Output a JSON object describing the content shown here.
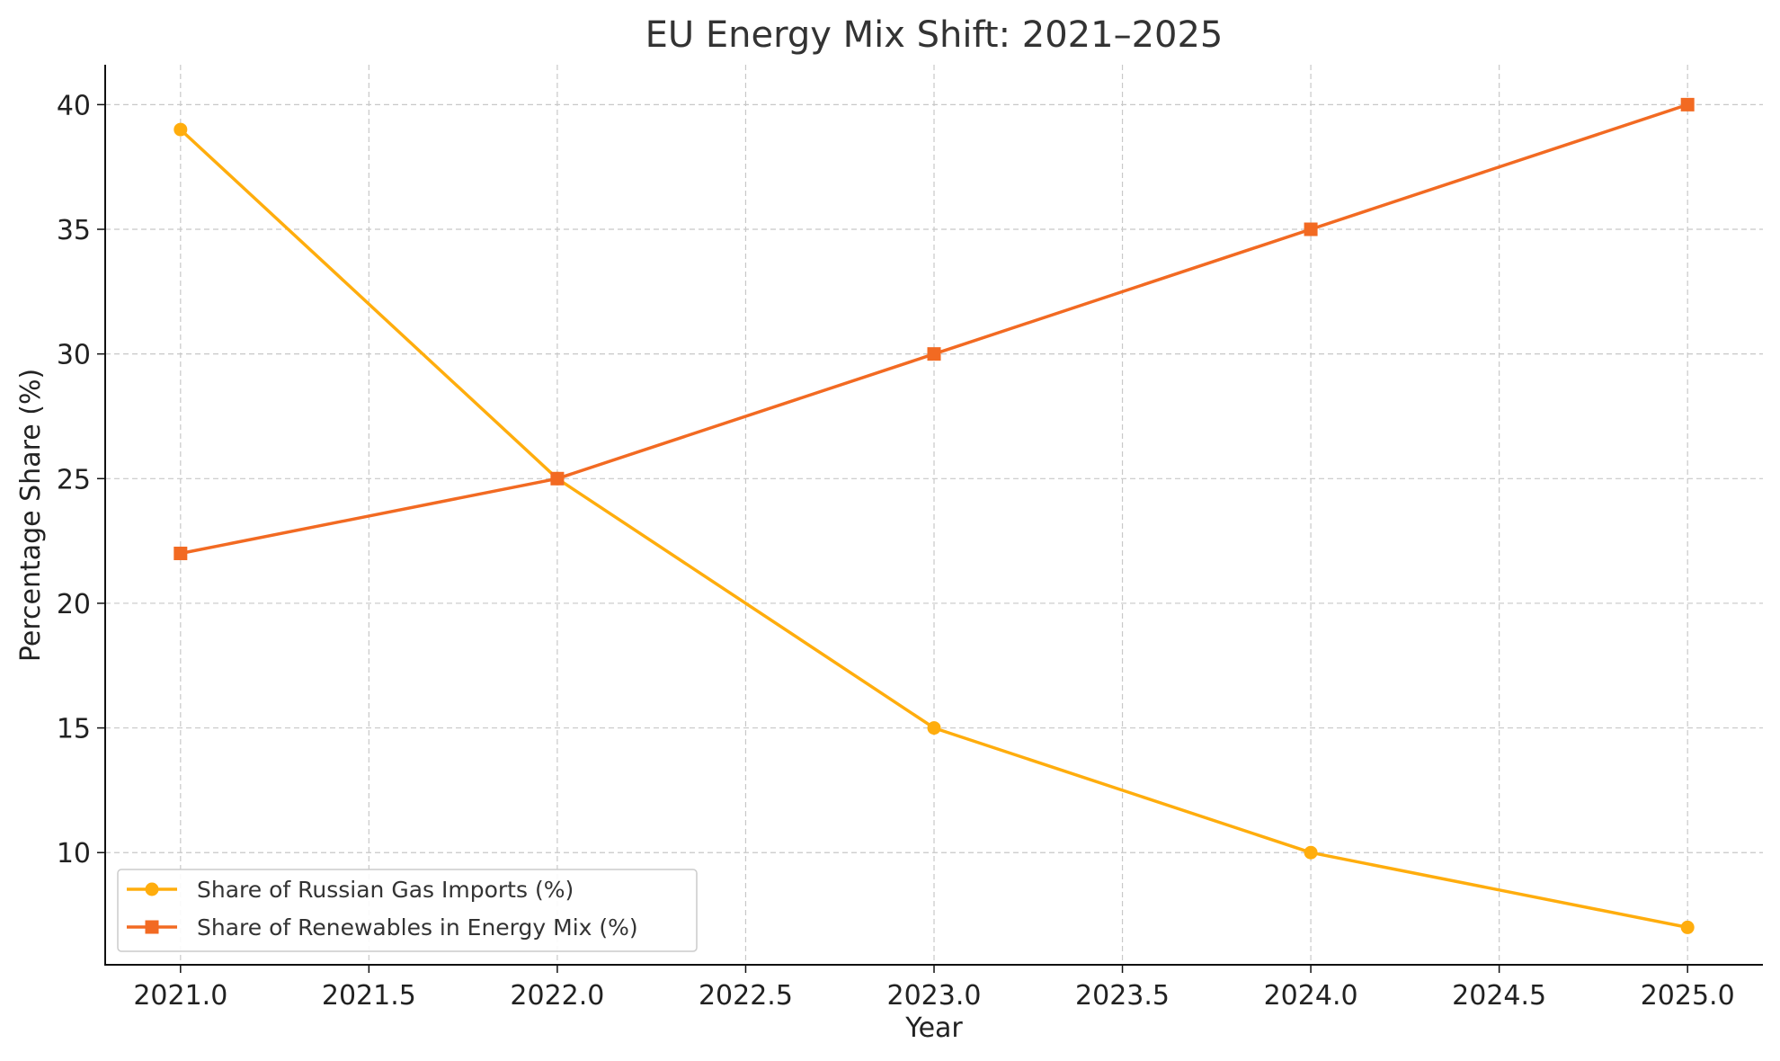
{
  "chart_data": {
    "type": "line",
    "title": "EU Energy Mix Shift: 2021–2025",
    "xlabel": "Year",
    "ylabel": "Percentage Share (%)",
    "x": [
      2021,
      2022,
      2023,
      2024,
      2025
    ],
    "xlim": [
      2020.8,
      2025.2
    ],
    "ylim": [
      5.5,
      41.6
    ],
    "xticks": [
      "2021.0",
      "2021.5",
      "2022.0",
      "2022.5",
      "2023.0",
      "2023.5",
      "2024.0",
      "2024.5",
      "2025.0"
    ],
    "xtick_values": [
      2021.0,
      2021.5,
      2022.0,
      2022.5,
      2023.0,
      2023.5,
      2024.0,
      2024.5,
      2025.0
    ],
    "yticks": [
      "10",
      "15",
      "20",
      "25",
      "30",
      "35",
      "40"
    ],
    "ytick_values": [
      10,
      15,
      20,
      25,
      30,
      35,
      40
    ],
    "grid": true,
    "legend_position": "lower-left",
    "series": [
      {
        "name": "Share of Russian Gas Imports (%)",
        "values": [
          39,
          25,
          15,
          10,
          7
        ],
        "color": "#FFAD0D",
        "marker": "circle"
      },
      {
        "name": "Share of Renewables in Energy Mix (%)",
        "values": [
          22,
          25,
          30,
          35,
          40
        ],
        "color": "#F26A22",
        "marker": "square"
      }
    ]
  }
}
